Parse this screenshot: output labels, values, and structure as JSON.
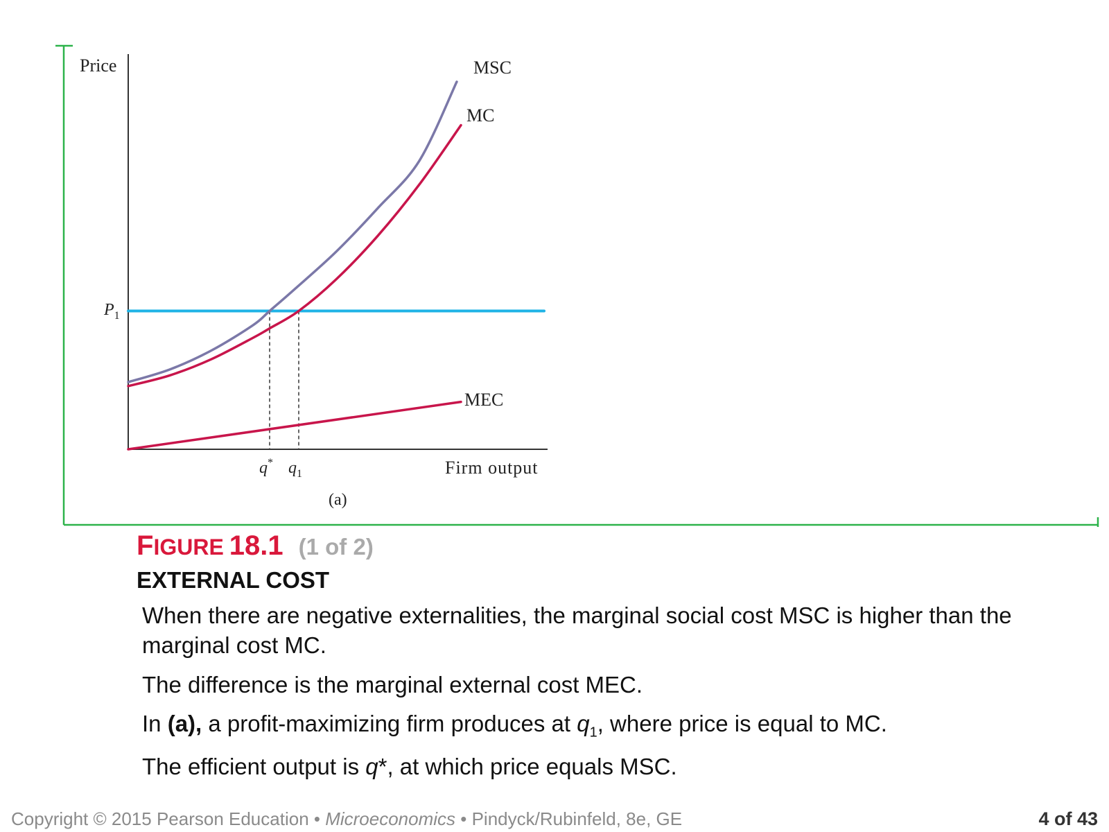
{
  "chart_data": {
    "type": "line",
    "panel_label": "(a)",
    "ylabel": "Price",
    "xlabel": "Firm output",
    "xlim": [
      0,
      10
    ],
    "ylim": [
      0,
      10
    ],
    "x_ticks": [
      {
        "label": "q*",
        "x": 3.4
      },
      {
        "label": "q1",
        "x": 4.1
      }
    ],
    "y_ticks": [
      {
        "label": "P1",
        "y": 3.5
      }
    ],
    "series": [
      {
        "name": "MSC",
        "color": "#7b78a8",
        "points": [
          [
            0,
            1.7
          ],
          [
            1,
            2.02
          ],
          [
            2,
            2.5
          ],
          [
            3,
            3.14
          ],
          [
            3.4,
            3.5
          ],
          [
            4,
            4.05
          ],
          [
            5,
            5.0
          ],
          [
            6,
            6.1
          ],
          [
            7,
            7.3
          ],
          [
            7.9,
            9.3
          ]
        ]
      },
      {
        "name": "MC",
        "color": "#c8154b",
        "points": [
          [
            0,
            1.6
          ],
          [
            1,
            1.87
          ],
          [
            2,
            2.28
          ],
          [
            3,
            2.82
          ],
          [
            3.4,
            3.06
          ],
          [
            4.1,
            3.5
          ],
          [
            5,
            4.3
          ],
          [
            6,
            5.4
          ],
          [
            7,
            6.7
          ],
          [
            8,
            8.2
          ]
        ]
      },
      {
        "name": "MEC",
        "color": "#c8154b",
        "points": [
          [
            0,
            0
          ],
          [
            8,
            1.2
          ]
        ]
      },
      {
        "name": "P1",
        "color": "#1fb3e6",
        "points": [
          [
            0,
            3.5
          ],
          [
            10,
            3.5
          ]
        ]
      }
    ]
  },
  "caption": {
    "figure_word_first": "F",
    "figure_word_rest": "IGURE",
    "figure_number": "18.1",
    "figure_part": "(1 of 2)",
    "title": "EXTERNAL COST",
    "para1": "When there are negative externalities, the marginal social cost MSC is higher than the marginal cost MC.",
    "para2": "The difference is the marginal external cost MEC.",
    "para3_pre": "In ",
    "para3_bold": "(a),",
    "para3_mid": " a profit-maximizing firm produces at ",
    "para3_var": "q",
    "para3_sub": "1",
    "para3_post": ", where price is equal to MC.",
    "para4_pre": "The efficient output is ",
    "para4_var": "q",
    "para4_post": "*, at which price equals MSC."
  },
  "footer": {
    "copyright": "Copyright © 2015  Pearson Education • ",
    "book": "Microeconomics",
    "sep": "  •  ",
    "authors": "Pindyck/Rubinfeld, 8e, GE",
    "page": "4 of 43"
  }
}
